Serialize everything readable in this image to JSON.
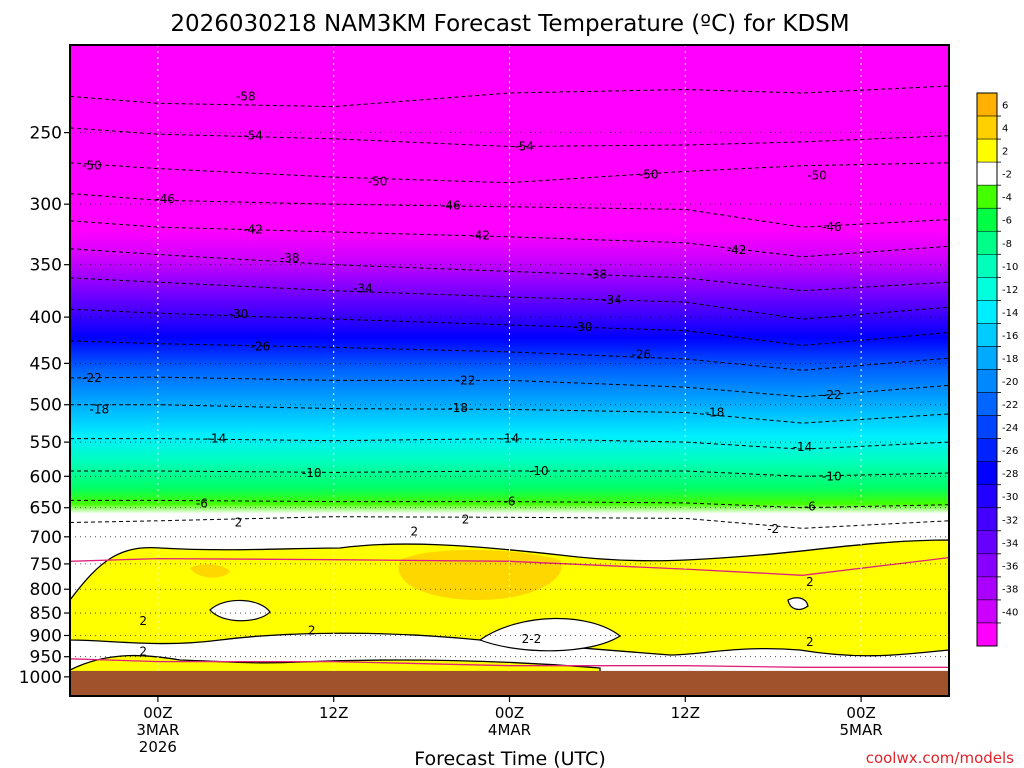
{
  "chart_data": {
    "type": "heatmap",
    "title": "2026030218 NAM3KM Forecast Temperature (ºC) for KDSM",
    "xlabel": "Forecast Time (UTC)",
    "ylabel": "",
    "credit": "coolwx.com/models",
    "y_axis": {
      "scale": "log",
      "range": [
        1050,
        200
      ],
      "inverted": true,
      "ticks": [
        "250",
        "300",
        "350",
        "400",
        "450",
        "500",
        "550",
        "600",
        "650",
        "700",
        "750",
        "800",
        "850",
        "900",
        "950",
        "1000"
      ]
    },
    "x_axis": {
      "range": [
        -6,
        54
      ],
      "units": "hours from 2026-03-03 00Z",
      "ticks": [
        {
          "x": 0,
          "lines": [
            "00Z",
            "3MAR",
            "2026"
          ]
        },
        {
          "x": 12,
          "lines": [
            "12Z"
          ]
        },
        {
          "x": 24,
          "lines": [
            "00Z",
            "4MAR"
          ]
        },
        {
          "x": 36,
          "lines": [
            "12Z"
          ]
        },
        {
          "x": 48,
          "lines": [
            "00Z",
            "5MAR"
          ]
        }
      ]
    },
    "grid": true,
    "ground": {
      "color": "#a0522d",
      "pressure_top": 985
    },
    "colorbar": {
      "placement": "right",
      "bins": [
        {
          "range": [
            6,
            8
          ],
          "color": "#ffb000"
        },
        {
          "range": [
            4,
            6
          ],
          "color": "#ffd000"
        },
        {
          "range": [
            2,
            4
          ],
          "color": "#ffff00"
        },
        {
          "range": [
            -2,
            2
          ],
          "color": "#ffffff"
        },
        {
          "range": [
            -4,
            -2
          ],
          "color": "#44ff00"
        },
        {
          "range": [
            -6,
            -4
          ],
          "color": "#00ff44"
        },
        {
          "range": [
            -8,
            -6
          ],
          "color": "#00ff88"
        },
        {
          "range": [
            -10,
            -8
          ],
          "color": "#00ffbb"
        },
        {
          "range": [
            -12,
            -10
          ],
          "color": "#00ffdd"
        },
        {
          "range": [
            -14,
            -12
          ],
          "color": "#00eeff"
        },
        {
          "range": [
            -16,
            -14
          ],
          "color": "#00ccff"
        },
        {
          "range": [
            -18,
            -16
          ],
          "color": "#00aaff"
        },
        {
          "range": [
            -20,
            -18
          ],
          "color": "#0088ff"
        },
        {
          "range": [
            -22,
            -20
          ],
          "color": "#0066ff"
        },
        {
          "range": [
            -24,
            -22
          ],
          "color": "#0044ff"
        },
        {
          "range": [
            -26,
            -24
          ],
          "color": "#0022ff"
        },
        {
          "range": [
            -28,
            -26
          ],
          "color": "#0000ff"
        },
        {
          "range": [
            -30,
            -28
          ],
          "color": "#2200ff"
        },
        {
          "range": [
            -32,
            -30
          ],
          "color": "#4400ff"
        },
        {
          "range": [
            -34,
            -32
          ],
          "color": "#6600ff"
        },
        {
          "range": [
            -36,
            -34
          ],
          "color": "#8800ff"
        },
        {
          "range": [
            -38,
            -36
          ],
          "color": "#aa00ff"
        },
        {
          "range": [
            -40,
            -38
          ],
          "color": "#cc00ff"
        },
        {
          "range": [
            -42,
            -40
          ],
          "color": "#ff00ff"
        }
      ],
      "tick_labels": [
        "6",
        "4",
        "2",
        "-2",
        "-4",
        "-6",
        "-8",
        "-10",
        "-12",
        "-14",
        "-16",
        "-18",
        "-20",
        "-22",
        "-24",
        "-26",
        "-28",
        "-30",
        "-32",
        "-34",
        "-36",
        "-38",
        "-40"
      ]
    },
    "isotherms": [
      {
        "t": -58,
        "p": [
          [
            -6,
            228
          ],
          [
            0,
            232
          ],
          [
            12,
            234
          ],
          [
            24,
            226
          ],
          [
            36,
            224
          ],
          [
            44,
            226
          ],
          [
            54,
            222
          ]
        ]
      },
      {
        "t": -54,
        "p": [
          [
            -6,
            247
          ],
          [
            0,
            251
          ],
          [
            12,
            254
          ],
          [
            24,
            259
          ],
          [
            36,
            258
          ],
          [
            44,
            256
          ],
          [
            54,
            252
          ]
        ]
      },
      {
        "t": -50,
        "p": [
          [
            -6,
            270
          ],
          [
            0,
            274
          ],
          [
            12,
            280
          ],
          [
            24,
            284
          ],
          [
            36,
            276
          ],
          [
            44,
            272
          ],
          [
            54,
            270
          ]
        ]
      },
      {
        "t": -46,
        "p": [
          [
            -6,
            292
          ],
          [
            0,
            297
          ],
          [
            12,
            300
          ],
          [
            24,
            302
          ],
          [
            36,
            304
          ],
          [
            44,
            318
          ],
          [
            54,
            312
          ]
        ]
      },
      {
        "t": -42,
        "p": [
          [
            -6,
            313
          ],
          [
            0,
            318
          ],
          [
            12,
            322
          ],
          [
            24,
            326
          ],
          [
            36,
            331
          ],
          [
            44,
            343
          ],
          [
            54,
            334
          ]
        ]
      },
      {
        "t": -38,
        "p": [
          [
            -6,
            336
          ],
          [
            0,
            341
          ],
          [
            12,
            350
          ],
          [
            24,
            356
          ],
          [
            36,
            362
          ],
          [
            44,
            374
          ],
          [
            54,
            366
          ]
        ]
      },
      {
        "t": -34,
        "p": [
          [
            -6,
            362
          ],
          [
            0,
            366
          ],
          [
            12,
            374
          ],
          [
            24,
            380
          ],
          [
            36,
            385
          ],
          [
            44,
            402
          ],
          [
            54,
            390
          ]
        ]
      },
      {
        "t": -30,
        "p": [
          [
            -6,
            392
          ],
          [
            0,
            396
          ],
          [
            12,
            402
          ],
          [
            24,
            408
          ],
          [
            36,
            414
          ],
          [
            44,
            430
          ],
          [
            54,
            416
          ]
        ]
      },
      {
        "t": -26,
        "p": [
          [
            -6,
            425
          ],
          [
            0,
            428
          ],
          [
            12,
            432
          ],
          [
            24,
            437
          ],
          [
            36,
            445
          ],
          [
            44,
            458
          ],
          [
            54,
            444
          ]
        ]
      },
      {
        "t": -22,
        "p": [
          [
            -6,
            467
          ],
          [
            0,
            466
          ],
          [
            12,
            470
          ],
          [
            24,
            470
          ],
          [
            36,
            478
          ],
          [
            44,
            490
          ],
          [
            54,
            476
          ]
        ]
      },
      {
        "t": -18,
        "p": [
          [
            -6,
            500
          ],
          [
            0,
            500
          ],
          [
            12,
            505
          ],
          [
            24,
            506
          ],
          [
            36,
            510
          ],
          [
            44,
            524
          ],
          [
            54,
            512
          ]
        ]
      },
      {
        "t": -14,
        "p": [
          [
            -6,
            545
          ],
          [
            0,
            545
          ],
          [
            12,
            548
          ],
          [
            24,
            545
          ],
          [
            36,
            550
          ],
          [
            44,
            560
          ],
          [
            54,
            550
          ]
        ]
      },
      {
        "t": -10,
        "p": [
          [
            -6,
            592
          ],
          [
            0,
            592
          ],
          [
            12,
            594
          ],
          [
            24,
            592
          ],
          [
            36,
            592
          ],
          [
            44,
            600
          ],
          [
            54,
            595
          ]
        ]
      },
      {
        "t": -6,
        "p": [
          [
            -6,
            638
          ],
          [
            0,
            638
          ],
          [
            12,
            640
          ],
          [
            24,
            640
          ],
          [
            36,
            642
          ],
          [
            44,
            650
          ],
          [
            54,
            645
          ]
        ]
      },
      {
        "t": -2,
        "p": [
          [
            -6,
            675
          ],
          [
            0,
            672
          ],
          [
            12,
            665
          ],
          [
            24,
            666
          ],
          [
            36,
            668
          ],
          [
            44,
            685
          ],
          [
            54,
            672
          ]
        ]
      },
      {
        "t": 2,
        "p": [
          [
            -6,
            745
          ],
          [
            0,
            740
          ],
          [
            12,
            742
          ],
          [
            24,
            745
          ],
          [
            36,
            760
          ],
          [
            44,
            772
          ],
          [
            54,
            738
          ]
        ]
      },
      {
        "t": 2,
        "p": [
          [
            -6,
            955
          ],
          [
            0,
            962
          ],
          [
            12,
            962
          ],
          [
            24,
            972
          ],
          [
            36,
            972
          ],
          [
            44,
            976
          ],
          [
            54,
            976
          ]
        ]
      }
    ],
    "contour_labels": [
      {
        "text": "-58",
        "x": 6.0,
        "p": 228
      },
      {
        "text": "-54",
        "x": 6.5,
        "p": 252
      },
      {
        "text": "-54",
        "x": 25.0,
        "p": 259
      },
      {
        "text": "-50",
        "x": -4.5,
        "p": 272
      },
      {
        "text": "-50",
        "x": 15.0,
        "p": 283
      },
      {
        "text": "-50",
        "x": 33.5,
        "p": 278
      },
      {
        "text": "-50",
        "x": 45.0,
        "p": 279
      },
      {
        "text": "-46",
        "x": 0.5,
        "p": 296
      },
      {
        "text": "-46",
        "x": 20.0,
        "p": 301
      },
      {
        "text": "-46",
        "x": 46.0,
        "p": 318
      },
      {
        "text": "-42",
        "x": 6.5,
        "p": 320
      },
      {
        "text": "-42",
        "x": 22.0,
        "p": 325
      },
      {
        "text": "-42",
        "x": 39.5,
        "p": 337
      },
      {
        "text": "-38",
        "x": 9.0,
        "p": 344
      },
      {
        "text": "-38",
        "x": 30.0,
        "p": 359
      },
      {
        "text": "-34",
        "x": 14.0,
        "p": 372
      },
      {
        "text": "-34",
        "x": 31.0,
        "p": 383
      },
      {
        "text": "-30",
        "x": 5.5,
        "p": 397
      },
      {
        "text": "-30",
        "x": 29.0,
        "p": 410
      },
      {
        "text": "-26",
        "x": 7.0,
        "p": 431
      },
      {
        "text": "-26",
        "x": 33.0,
        "p": 440
      },
      {
        "text": "-22",
        "x": -4.5,
        "p": 467
      },
      {
        "text": "-22",
        "x": 21.0,
        "p": 470
      },
      {
        "text": "-22",
        "x": 46.0,
        "p": 488
      },
      {
        "text": "-18",
        "x": -4.0,
        "p": 506
      },
      {
        "text": "-18",
        "x": 20.5,
        "p": 504
      },
      {
        "text": "-18",
        "x": 38.0,
        "p": 510
      },
      {
        "text": "-14",
        "x": 4.0,
        "p": 545
      },
      {
        "text": "-14",
        "x": 24.0,
        "p": 545
      },
      {
        "text": "-14",
        "x": 44.0,
        "p": 557
      },
      {
        "text": "-10",
        "x": 10.5,
        "p": 595
      },
      {
        "text": "-10",
        "x": 26.0,
        "p": 592
      },
      {
        "text": "-10",
        "x": 46.0,
        "p": 600
      },
      {
        "text": "-6",
        "x": 3.0,
        "p": 643
      },
      {
        "text": "-6",
        "x": 24.0,
        "p": 640
      },
      {
        "text": "-6",
        "x": 44.5,
        "p": 648
      },
      {
        "text": "2",
        "x": 5.5,
        "p": 675
      },
      {
        "text": "2",
        "x": 17.5,
        "p": 691
      },
      {
        "text": "2",
        "x": 21.0,
        "p": 670
      },
      {
        "text": "-2",
        "x": 42.0,
        "p": 686
      },
      {
        "text": "2",
        "x": 44.5,
        "p": 785
      },
      {
        "text": "2",
        "x": -1.0,
        "p": 867
      },
      {
        "text": "2",
        "x": 10.5,
        "p": 889
      },
      {
        "text": "2-2",
        "x": 25.5,
        "p": 908
      },
      {
        "text": "2",
        "x": -1.0,
        "p": 937
      },
      {
        "text": "2",
        "x": 44.5,
        "p": 915
      }
    ]
  }
}
